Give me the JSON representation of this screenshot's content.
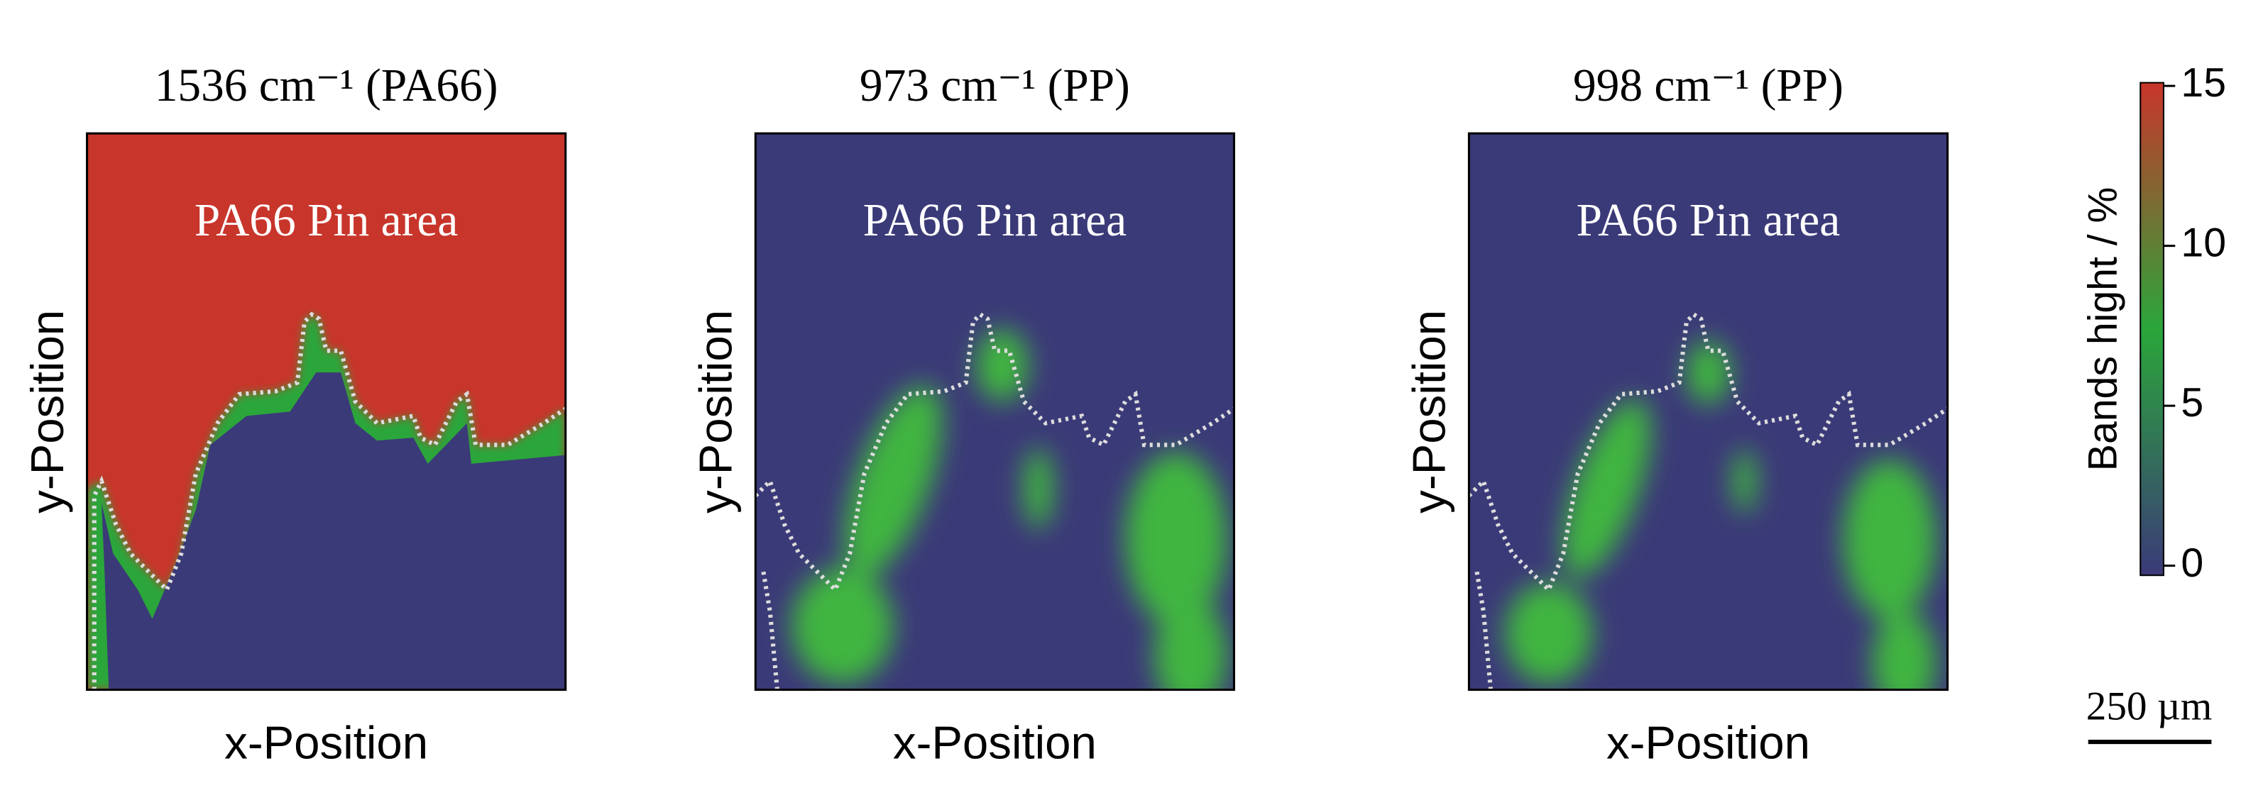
{
  "chart_data": [
    {
      "type": "heatmap",
      "title": "1536 cm⁻¹ (PA66)",
      "annotation": "PA66 Pin area",
      "xlabel": "x-Position",
      "ylabel": "y-Position"
    },
    {
      "type": "heatmap",
      "title": "973 cm⁻¹ (PP)",
      "annotation": "PA66 Pin area",
      "xlabel": "x-Position",
      "ylabel": "y-Position"
    },
    {
      "type": "heatmap",
      "title": "998 cm⁻¹ (PP)",
      "annotation": "PA66 Pin area",
      "xlabel": "x-Position",
      "ylabel": "y-Position"
    }
  ],
  "colorbar": {
    "label": "Bands hight / %",
    "lim": [
      -0.3,
      15.1
    ],
    "ticks": [
      0,
      5,
      10,
      15
    ],
    "colors": [
      "#3b3a78",
      "#2aa63a",
      "#c8352b"
    ]
  },
  "scale_bar": "250 µm"
}
